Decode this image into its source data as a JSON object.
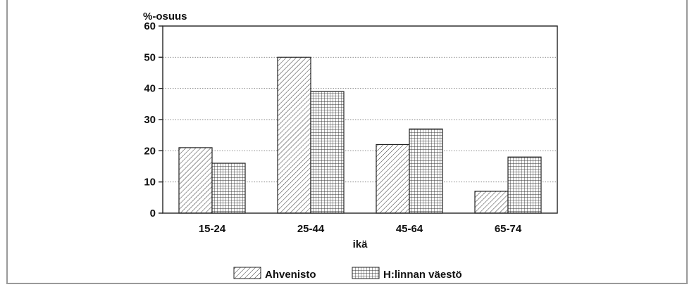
{
  "chart_data": {
    "type": "bar",
    "title": "",
    "ylabel": "%-osuus",
    "xlabel": "ikä",
    "categories": [
      "15-24",
      "25-44",
      "45-64",
      "65-74"
    ],
    "series": [
      {
        "name": "Ahvenisto",
        "values": [
          21,
          50,
          22,
          7
        ],
        "pattern": "diagonal-hatch"
      },
      {
        "name": "H:linnan väestö",
        "values": [
          16,
          39,
          27,
          18
        ],
        "pattern": "crosshatch-grid"
      }
    ],
    "ylim": [
      0,
      60
    ],
    "yticks": [
      "0",
      "10",
      "20",
      "30",
      "40",
      "50",
      "60"
    ],
    "grid": "horizontal-dotted",
    "legend_position": "bottom-center",
    "colors": {
      "line": "#222222",
      "grid": "#888888",
      "frame": "#9a9a9a"
    }
  }
}
